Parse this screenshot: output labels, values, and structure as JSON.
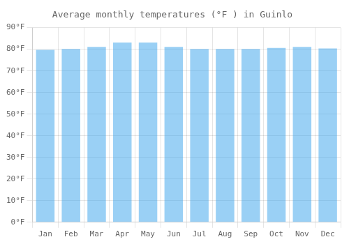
{
  "chart_data": {
    "type": "bar",
    "title": "Average monthly temperatures (°F ) in Guinlo",
    "categories": [
      "Jan",
      "Feb",
      "Mar",
      "Apr",
      "May",
      "Jun",
      "Jul",
      "Aug",
      "Sep",
      "Oct",
      "Nov",
      "Dec"
    ],
    "values": [
      79.7,
      80.1,
      81.1,
      83.1,
      83.1,
      81.1,
      80.1,
      80.1,
      80.1,
      80.6,
      81.1,
      80.4
    ],
    "ylim": [
      0,
      90
    ],
    "yticks": [
      {
        "value": 0,
        "label": "0°F"
      },
      {
        "value": 10,
        "label": "10°F"
      },
      {
        "value": 20,
        "label": "20°F"
      },
      {
        "value": 30,
        "label": "30°F"
      },
      {
        "value": 40,
        "label": "40°F"
      },
      {
        "value": 50,
        "label": "50°F"
      },
      {
        "value": 60,
        "label": "60°F"
      },
      {
        "value": 70,
        "label": "70°F"
      },
      {
        "value": 80,
        "label": "80°F"
      },
      {
        "value": 90,
        "label": "90°F"
      }
    ],
    "grid": true
  }
}
